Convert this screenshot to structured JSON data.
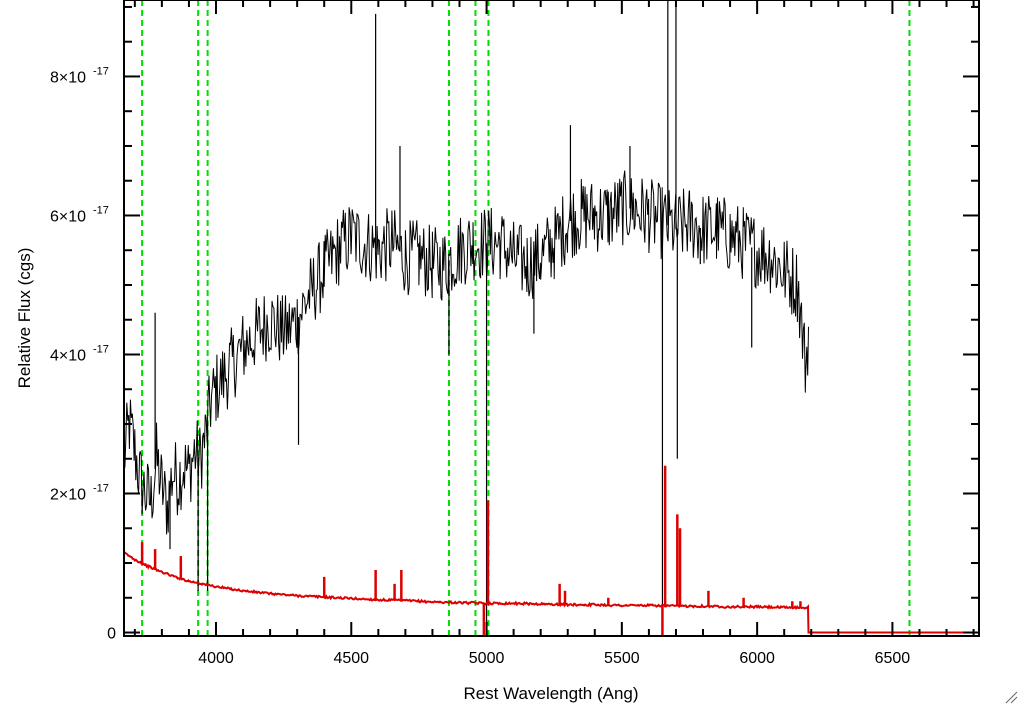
{
  "chart_data": {
    "type": "line",
    "title": "",
    "xlabel": "Rest Wavelength (Ang)",
    "ylabel": "Relative Flux (cgs)",
    "xlim": [
      3660,
      6820
    ],
    "ylim": [
      -0.05,
      9.1
    ],
    "y_exponent_label": "-17",
    "x_ticks": [
      4000,
      4500,
      5000,
      5500,
      6000,
      6500
    ],
    "x_tick_labels": [
      "4000",
      "4500",
      "5000",
      "5500",
      "6000",
      "6500"
    ],
    "y_ticks": [
      0,
      2,
      4,
      6,
      8
    ],
    "y_tick_labels": [
      {
        "value": 0,
        "mantissa": "0",
        "exp": ""
      },
      {
        "value": 2,
        "mantissa": "2×10",
        "exp": "-17"
      },
      {
        "value": 4,
        "mantissa": "4×10",
        "exp": "-17"
      },
      {
        "value": 6,
        "mantissa": "6×10",
        "exp": "-17"
      },
      {
        "value": 8,
        "mantissa": "8×10",
        "exp": "-17"
      }
    ],
    "grid": false,
    "legend": "none",
    "vertical_lines": {
      "color": "#00dd00",
      "style": "dashed",
      "x": [
        3727,
        3934,
        3969,
        4861,
        4959,
        5007,
        6563
      ]
    },
    "series": [
      {
        "color": "#000000",
        "points": [
          [
            3660,
            2.5
          ],
          [
            3680,
            3.0
          ],
          [
            3700,
            2.6
          ],
          [
            3720,
            2.2
          ],
          [
            3740,
            2.0
          ],
          [
            3760,
            1.9
          ],
          [
            3780,
            2.5
          ],
          [
            3800,
            2.1
          ],
          [
            3820,
            1.8
          ],
          [
            3840,
            2.3
          ],
          [
            3860,
            2.2
          ],
          [
            3880,
            2.4
          ],
          [
            3900,
            2.3
          ],
          [
            3920,
            2.6
          ],
          [
            3940,
            2.5
          ],
          [
            3960,
            2.8
          ],
          [
            3980,
            3.3
          ],
          [
            4000,
            3.5
          ],
          [
            4050,
            3.8
          ],
          [
            4100,
            4.1
          ],
          [
            4150,
            4.3
          ],
          [
            4200,
            4.5
          ],
          [
            4250,
            4.3
          ],
          [
            4300,
            4.5
          ],
          [
            4350,
            4.9
          ],
          [
            4400,
            5.2
          ],
          [
            4450,
            5.5
          ],
          [
            4500,
            5.7
          ],
          [
            4550,
            5.6
          ],
          [
            4600,
            5.5
          ],
          [
            4650,
            5.6
          ],
          [
            4700,
            5.4
          ],
          [
            4750,
            5.4
          ],
          [
            4800,
            5.3
          ],
          [
            4850,
            5.3
          ],
          [
            4900,
            5.5
          ],
          [
            4950,
            5.6
          ],
          [
            5000,
            5.6
          ],
          [
            5050,
            5.6
          ],
          [
            5100,
            5.4
          ],
          [
            5150,
            5.3
          ],
          [
            5200,
            5.4
          ],
          [
            5250,
            5.6
          ],
          [
            5300,
            5.9
          ],
          [
            5350,
            6.0
          ],
          [
            5400,
            6.0
          ],
          [
            5450,
            6.0
          ],
          [
            5500,
            6.1
          ],
          [
            5550,
            6.1
          ],
          [
            5600,
            6.0
          ],
          [
            5650,
            5.9
          ],
          [
            5700,
            5.8
          ],
          [
            5750,
            5.9
          ],
          [
            5800,
            5.8
          ],
          [
            5850,
            5.8
          ],
          [
            5900,
            5.7
          ],
          [
            5950,
            5.6
          ],
          [
            6000,
            5.5
          ],
          [
            6050,
            5.4
          ],
          [
            6100,
            5.2
          ],
          [
            6150,
            5.0
          ],
          [
            6180,
            3.8
          ],
          [
            6190,
            4.4
          ]
        ],
        "features": [
          [
            3775,
            4.6
          ],
          [
            3830,
            1.2
          ],
          [
            3934,
            0.6
          ],
          [
            3969,
            0.6
          ],
          [
            4305,
            2.7
          ],
          [
            4590,
            8.9
          ],
          [
            4680,
            7.0
          ],
          [
            4861,
            4.0
          ],
          [
            5000,
            0.1
          ],
          [
            5175,
            4.3
          ],
          [
            5310,
            7.3
          ],
          [
            5530,
            7.0
          ],
          [
            5650,
            0.1
          ],
          [
            5670,
            9.1
          ],
          [
            5700,
            9.1
          ],
          [
            5705,
            2.5
          ],
          [
            5790,
            5.3
          ],
          [
            5980,
            4.1
          ]
        ]
      },
      {
        "color": "#dd0000",
        "points": [
          [
            3660,
            1.15
          ],
          [
            3700,
            1.05
          ],
          [
            3750,
            0.95
          ],
          [
            3800,
            0.87
          ],
          [
            3850,
            0.8
          ],
          [
            3900,
            0.74
          ],
          [
            3950,
            0.7
          ],
          [
            4000,
            0.66
          ],
          [
            4100,
            0.6
          ],
          [
            4200,
            0.56
          ],
          [
            4300,
            0.53
          ],
          [
            4400,
            0.51
          ],
          [
            4500,
            0.49
          ],
          [
            4600,
            0.47
          ],
          [
            4700,
            0.46
          ],
          [
            4800,
            0.44
          ],
          [
            4900,
            0.43
          ],
          [
            5000,
            0.42
          ],
          [
            5100,
            0.42
          ],
          [
            5200,
            0.41
          ],
          [
            5300,
            0.4
          ],
          [
            5400,
            0.4
          ],
          [
            5500,
            0.39
          ],
          [
            5600,
            0.39
          ],
          [
            5700,
            0.38
          ],
          [
            5800,
            0.38
          ],
          [
            5900,
            0.37
          ],
          [
            6000,
            0.37
          ],
          [
            6100,
            0.36
          ],
          [
            6190,
            0.36
          ],
          [
            6190,
            0.0
          ],
          [
            6820,
            0.0
          ]
        ],
        "features": [
          [
            3727,
            1.3
          ],
          [
            3775,
            1.2
          ],
          [
            3870,
            1.1
          ],
          [
            4400,
            0.8
          ],
          [
            4590,
            0.9
          ],
          [
            4660,
            0.7
          ],
          [
            4685,
            0.9
          ],
          [
            4990,
            -0.05
          ],
          [
            5005,
            1.9
          ],
          [
            5270,
            0.7
          ],
          [
            5290,
            0.6
          ],
          [
            5450,
            0.5
          ],
          [
            5650,
            -0.05
          ],
          [
            5660,
            2.4
          ],
          [
            5705,
            1.7
          ],
          [
            5715,
            1.5
          ],
          [
            5820,
            0.6
          ],
          [
            5950,
            0.5
          ],
          [
            6130,
            0.45
          ],
          [
            6160,
            0.45
          ]
        ]
      }
    ]
  }
}
